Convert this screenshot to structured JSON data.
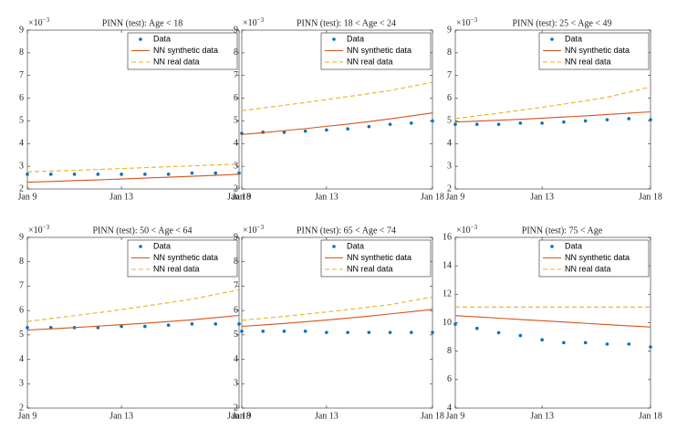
{
  "chart_data": [
    {
      "type": "line",
      "title": "PINN (test): Age < 18",
      "y_multiplier": {
        "base": "×10",
        "exponent": "−3"
      },
      "categories": [
        "Jan 9",
        null,
        null,
        null,
        "Jan 13",
        null,
        null,
        null,
        null,
        "Jan 18"
      ],
      "ylim": [
        2,
        9
      ],
      "yticks": [
        2,
        3,
        4,
        5,
        6,
        7,
        8,
        9
      ],
      "legend": "northeast",
      "series": [
        {
          "name": "Data",
          "color": "#0072bd",
          "style": "markers",
          "values": [
            2.65,
            2.65,
            2.65,
            2.65,
            2.65,
            2.65,
            2.65,
            2.7,
            2.7,
            2.7
          ]
        },
        {
          "name": "NN synthetic data",
          "color": "#d95319",
          "style": "solid",
          "values": [
            2.3,
            2.33,
            2.37,
            2.4,
            2.44,
            2.48,
            2.52,
            2.56,
            2.6,
            2.65
          ]
        },
        {
          "name": "NN real data",
          "color": "#edb120",
          "style": "dashed",
          "values": [
            2.75,
            2.79,
            2.82,
            2.86,
            2.9,
            2.94,
            2.98,
            3.02,
            3.06,
            3.1
          ]
        }
      ]
    },
    {
      "type": "line",
      "title": "PINN (test): 18 < Age < 24",
      "y_multiplier": {
        "base": "×10",
        "exponent": "−3"
      },
      "categories": [
        "Jan 9",
        null,
        null,
        null,
        "Jan 13",
        null,
        null,
        null,
        null,
        "Jan 18"
      ],
      "ylim": [
        2,
        9
      ],
      "yticks": [
        2,
        3,
        4,
        5,
        6,
        7,
        8,
        9
      ],
      "legend": "northeast",
      "series": [
        {
          "name": "Data",
          "color": "#0072bd",
          "style": "markers",
          "values": [
            4.45,
            4.5,
            4.5,
            4.55,
            4.6,
            4.65,
            4.75,
            4.85,
            4.9,
            5.0
          ]
        },
        {
          "name": "NN synthetic data",
          "color": "#d95319",
          "style": "solid",
          "values": [
            4.4,
            4.48,
            4.57,
            4.66,
            4.76,
            4.86,
            4.97,
            5.09,
            5.22,
            5.35
          ]
        },
        {
          "name": "NN real data",
          "color": "#edb120",
          "style": "dashed",
          "values": [
            5.45,
            5.57,
            5.69,
            5.81,
            5.94,
            6.07,
            6.2,
            6.34,
            6.52,
            6.7
          ]
        }
      ]
    },
    {
      "type": "line",
      "title": "PINN (test): 25 < Age < 49",
      "y_multiplier": {
        "base": "×10",
        "exponent": "−3"
      },
      "categories": [
        "Jan 9",
        null,
        null,
        null,
        "Jan 13",
        null,
        null,
        null,
        null,
        "Jan 18"
      ],
      "ylim": [
        2,
        9
      ],
      "yticks": [
        2,
        3,
        4,
        5,
        6,
        7,
        8,
        9
      ],
      "legend": "northeast",
      "series": [
        {
          "name": "Data",
          "color": "#0072bd",
          "style": "markers",
          "values": [
            4.85,
            4.85,
            4.85,
            4.9,
            4.9,
            4.95,
            5.0,
            5.05,
            5.1,
            5.05
          ]
        },
        {
          "name": "NN synthetic data",
          "color": "#d95319",
          "style": "solid",
          "values": [
            4.95,
            4.99,
            5.03,
            5.07,
            5.12,
            5.17,
            5.22,
            5.28,
            5.34,
            5.4
          ]
        },
        {
          "name": "NN real data",
          "color": "#edb120",
          "style": "dashed",
          "values": [
            5.1,
            5.22,
            5.34,
            5.47,
            5.6,
            5.74,
            5.89,
            6.04,
            6.27,
            6.5
          ]
        }
      ]
    },
    {
      "type": "line",
      "title": "PINN (test): 50 < Age < 64",
      "y_multiplier": {
        "base": "×10",
        "exponent": "−3"
      },
      "categories": [
        "Jan 9",
        null,
        null,
        null,
        "Jan 13",
        null,
        null,
        null,
        null,
        "Jan 18"
      ],
      "ylim": [
        2,
        9
      ],
      "yticks": [
        2,
        3,
        4,
        5,
        6,
        7,
        8,
        9
      ],
      "legend": "northeast",
      "series": [
        {
          "name": "Data",
          "color": "#0072bd",
          "style": "markers",
          "values": [
            5.3,
            5.3,
            5.3,
            5.3,
            5.35,
            5.35,
            5.4,
            5.45,
            5.45,
            5.45
          ]
        },
        {
          "name": "NN synthetic data",
          "color": "#d95319",
          "style": "solid",
          "values": [
            5.2,
            5.25,
            5.3,
            5.36,
            5.42,
            5.48,
            5.55,
            5.62,
            5.71,
            5.8
          ]
        },
        {
          "name": "NN real data",
          "color": "#edb120",
          "style": "dashed",
          "values": [
            5.55,
            5.67,
            5.79,
            5.91,
            6.04,
            6.18,
            6.32,
            6.47,
            6.66,
            6.85
          ]
        }
      ]
    },
    {
      "type": "line",
      "title": "PINN (test): 65 < Age < 74",
      "y_multiplier": {
        "base": "×10",
        "exponent": "−3"
      },
      "categories": [
        "Jan 9",
        null,
        null,
        null,
        "Jan 13",
        null,
        null,
        null,
        null,
        "Jan 18"
      ],
      "ylim": [
        2,
        9
      ],
      "yticks": [
        2,
        3,
        4,
        5,
        6,
        7,
        8,
        9
      ],
      "legend": "northeast",
      "series": [
        {
          "name": "Data",
          "color": "#0072bd",
          "style": "markers",
          "values": [
            5.15,
            5.15,
            5.15,
            5.15,
            5.1,
            5.1,
            5.1,
            5.1,
            5.1,
            5.1
          ]
        },
        {
          "name": "NN synthetic data",
          "color": "#d95319",
          "style": "solid",
          "values": [
            5.35,
            5.41,
            5.47,
            5.54,
            5.61,
            5.69,
            5.77,
            5.86,
            5.95,
            6.05
          ]
        },
        {
          "name": "NN real data",
          "color": "#edb120",
          "style": "dashed",
          "values": [
            5.6,
            5.68,
            5.76,
            5.85,
            5.94,
            6.04,
            6.14,
            6.24,
            6.4,
            6.55
          ]
        }
      ]
    },
    {
      "type": "line",
      "title": "PINN (test): 75 < Age",
      "y_multiplier": {
        "base": "×10",
        "exponent": "−3"
      },
      "categories": [
        "Jan 9",
        null,
        null,
        null,
        "Jan 13",
        null,
        null,
        null,
        null,
        "Jan 18"
      ],
      "ylim": [
        4,
        16
      ],
      "yticks": [
        4,
        6,
        8,
        10,
        12,
        14,
        16
      ],
      "legend": "northeast",
      "series": [
        {
          "name": "Data",
          "color": "#0072bd",
          "style": "markers",
          "values": [
            9.9,
            9.6,
            9.3,
            9.1,
            8.8,
            8.6,
            8.6,
            8.5,
            8.5,
            8.3
          ]
        },
        {
          "name": "NN synthetic data",
          "color": "#d95319",
          "style": "solid",
          "values": [
            10.5,
            10.41,
            10.32,
            10.23,
            10.14,
            10.05,
            9.96,
            9.87,
            9.78,
            9.7
          ]
        },
        {
          "name": "NN real data",
          "color": "#edb120",
          "style": "dashed",
          "values": [
            11.1,
            11.1,
            11.1,
            11.1,
            11.1,
            11.1,
            11.1,
            11.1,
            11.1,
            11.1
          ]
        }
      ]
    }
  ]
}
